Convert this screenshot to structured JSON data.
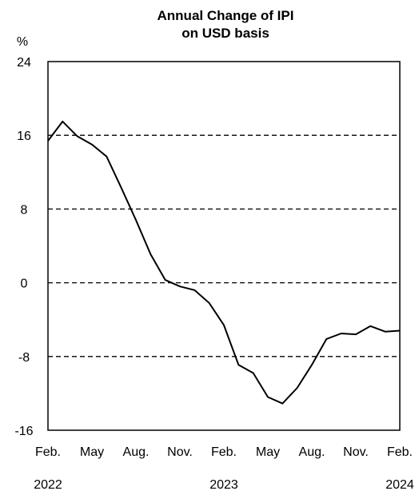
{
  "chart_data": {
    "type": "line",
    "title_lines": [
      "Annual Change of IPI",
      "on USD basis"
    ],
    "y_unit": "%",
    "ylim": [
      -16,
      24
    ],
    "y_ticks": [
      24,
      16,
      8,
      0,
      -8,
      -16
    ],
    "gridlines_dashed_at": [
      16,
      8,
      0,
      -8
    ],
    "x_tick_labels": [
      "Feb.",
      "May",
      "Aug.",
      "Nov.",
      "Feb.",
      "May",
      "Aug.",
      "Nov.",
      "Feb."
    ],
    "x_tick_positions": [
      0,
      3,
      6,
      9,
      12,
      15,
      18,
      21,
      24
    ],
    "year_labels": [
      {
        "text": "2022",
        "x": 0
      },
      {
        "text": "2023",
        "x": 12
      },
      {
        "text": "2024",
        "x": 24
      }
    ],
    "xlim": [
      0,
      24
    ],
    "series": [
      {
        "x": [
          0,
          1,
          2,
          3,
          4,
          5,
          6,
          7,
          8,
          9,
          10,
          11,
          12,
          13,
          14,
          15,
          16,
          17,
          18,
          19,
          20,
          21,
          22,
          23,
          24
        ],
        "values": [
          15.4,
          17.5,
          15.9,
          15.0,
          13.7,
          10.3,
          6.8,
          3.1,
          0.3,
          -0.4,
          -0.8,
          -2.2,
          -4.6,
          -8.9,
          -9.8,
          -12.4,
          -13.1,
          -11.4,
          -8.9,
          -6.1,
          -5.5,
          -5.6,
          -4.7,
          -5.3,
          -5.2
        ]
      }
    ],
    "colors": {
      "line": "#000000",
      "grid": "#000000"
    }
  }
}
